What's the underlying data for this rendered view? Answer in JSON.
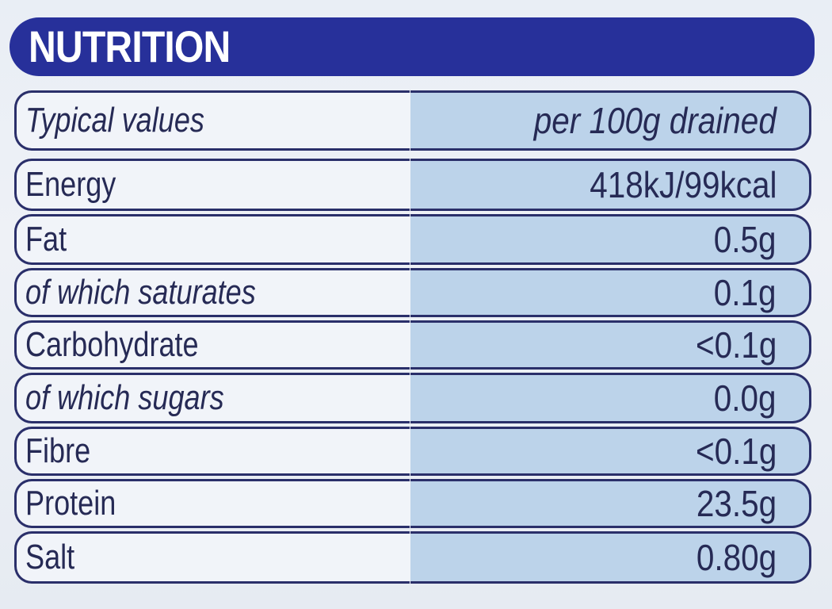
{
  "header": {
    "title": "NUTRITION"
  },
  "table": {
    "column_header": {
      "label": "Typical values",
      "value": "per 100g drained"
    },
    "rows": [
      {
        "label": "Energy",
        "value": "418kJ/99kcal",
        "italic": false
      },
      {
        "label": "Fat",
        "value": "0.5g",
        "italic": false
      },
      {
        "label": "of which saturates",
        "value": "0.1g",
        "italic": true
      },
      {
        "label": "Carbohydrate",
        "value": "<0.1g",
        "italic": false
      },
      {
        "label": "of which sugars",
        "value": "0.0g",
        "italic": true
      },
      {
        "label": "Fibre",
        "value": "<0.1g",
        "italic": false
      },
      {
        "label": "Protein",
        "value": "23.5g",
        "italic": false
      },
      {
        "label": "Salt",
        "value": "0.80g",
        "italic": false
      }
    ]
  },
  "colors": {
    "header_background": "#27309a",
    "header_text": "#ffffff",
    "border": "#2a2f6a",
    "left_cell": "#f1f4f9",
    "right_cell": "#bcd3ea",
    "text": "#262a55"
  }
}
